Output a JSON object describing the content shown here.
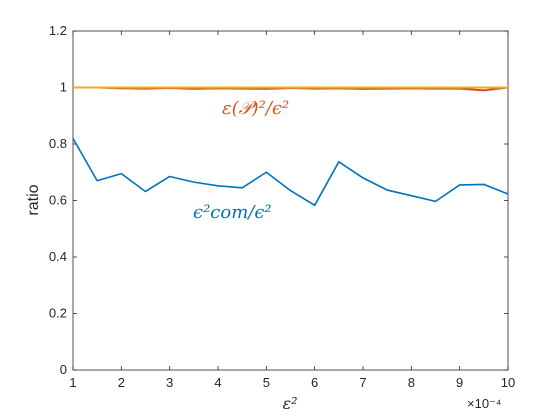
{
  "chart_data": {
    "type": "line",
    "title": "",
    "xlabel": "ε²",
    "ylabel": "ratio",
    "x_exponent_label": "×10⁻⁴",
    "xlim": [
      1,
      10
    ],
    "ylim": [
      0,
      1.2
    ],
    "x_ticks": [
      1,
      2,
      3,
      4,
      5,
      6,
      7,
      8,
      9,
      10
    ],
    "y_ticks": [
      0,
      0.2,
      0.4,
      0.6,
      0.8,
      1,
      1.2
    ],
    "x_tick_labels": [
      "1",
      "2",
      "3",
      "4",
      "5",
      "6",
      "7",
      "8",
      "9",
      "10"
    ],
    "y_tick_labels": [
      "0",
      "0.2",
      "0.4",
      "0.6",
      "0.8",
      "1",
      "1.2"
    ],
    "grid": false,
    "x": [
      1,
      1.5,
      2,
      2.5,
      3,
      3.5,
      4,
      4.5,
      5,
      5.5,
      6,
      6.5,
      7,
      7.5,
      8,
      8.5,
      9,
      9.5,
      10
    ],
    "series": [
      {
        "color": "#0072BD",
        "annotation": "ϵ²com/ϵ²",
        "values": [
          0.82,
          0.67,
          0.695,
          0.632,
          0.685,
          0.665,
          0.652,
          0.645,
          0.7,
          0.635,
          0.583,
          0.737,
          0.68,
          0.637,
          0.617,
          0.597,
          0.655,
          0.657,
          0.623
        ]
      },
      {
        "color": "#D95319",
        "annotation": "ε(𝒫)²/ϵ²",
        "values": [
          1.0,
          1.0,
          0.997,
          0.996,
          0.998,
          0.995,
          0.997,
          0.996,
          0.995,
          0.998,
          0.996,
          0.997,
          0.995,
          0.996,
          0.997,
          0.996,
          0.996,
          0.99,
          1.0
        ]
      },
      {
        "color": "#EDB120",
        "values": [
          1.0,
          1.0,
          1.0,
          1.0,
          1.0,
          1.0,
          1.0,
          1.0,
          1.0,
          1.0,
          1.0,
          1.0,
          1.0,
          1.0,
          1.0,
          1.0,
          1.0,
          1.0,
          1.0
        ]
      }
    ]
  }
}
